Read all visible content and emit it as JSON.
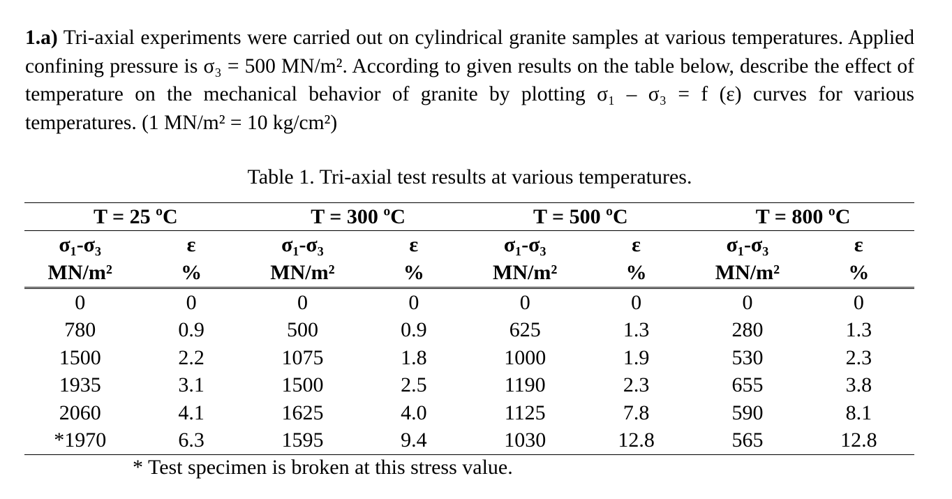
{
  "question": {
    "label": "1.a)",
    "text": "Tri-axial experiments were carried out on cylindrical granite samples at various temperatures. Applied confining pressure is σ₃ = 500 MN/m². According to given results on the table below, describe the effect of temperature on the mechanical behavior of granite by plotting σ₁ – σ₃ = f (ε) curves for various temperatures. (1 MN/m² = 10 kg/cm²)"
  },
  "table": {
    "caption": "Table 1. Tri-axial test results at various temperatures.",
    "groups": [
      "T = 25 ºC",
      "T = 300 ºC",
      "T = 500 ºC",
      "T = 800 ºC"
    ],
    "columns": [
      {
        "symbol": "σ₁-σ₃",
        "unit": "MN/m²"
      },
      {
        "symbol": "ε",
        "unit": "%"
      },
      {
        "symbol": "σ₁-σ₃",
        "unit": "MN/m²"
      },
      {
        "symbol": "ε",
        "unit": "%"
      },
      {
        "symbol": "σ₁-σ₃",
        "unit": "MN/m²"
      },
      {
        "symbol": "ε",
        "unit": "%"
      },
      {
        "symbol": "σ₁-σ₃",
        "unit": "MN/m²"
      },
      {
        "symbol": "ε",
        "unit": "%"
      }
    ],
    "rows": [
      [
        "0",
        "0",
        "0",
        "0",
        "0",
        "0",
        "0",
        "0"
      ],
      [
        "780",
        "0.9",
        "500",
        "0.9",
        "625",
        "1.3",
        "280",
        "1.3"
      ],
      [
        "1500",
        "2.2",
        "1075",
        "1.8",
        "1000",
        "1.9",
        "530",
        "2.3"
      ],
      [
        "1935",
        "3.1",
        "1500",
        "2.5",
        "1190",
        "2.3",
        "655",
        "3.8"
      ],
      [
        "2060",
        "4.1",
        "1625",
        "4.0",
        "1125",
        "7.8",
        "590",
        "8.1"
      ],
      [
        "*1970",
        "6.3",
        "1595",
        "9.4",
        "1030",
        "12.8",
        "565",
        "12.8"
      ]
    ],
    "footnote": "* Test specimen is broken at this stress value."
  }
}
